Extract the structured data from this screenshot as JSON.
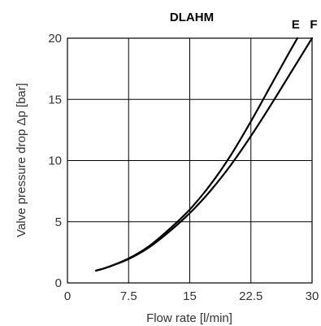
{
  "chart_data": {
    "type": "line",
    "title": "DLAHM",
    "xlabel": "Flow rate [l/min]",
    "ylabel": "Valve pressure drop Δp [bar]",
    "xlim": [
      0,
      30
    ],
    "ylim": [
      0,
      20
    ],
    "x_ticks": [
      "0",
      "7.5",
      "15",
      "22.5",
      "30"
    ],
    "y_ticks": [
      "0",
      "5",
      "10",
      "15",
      "20"
    ],
    "grid": true,
    "series": [
      {
        "name": "E",
        "x": [
          3.5,
          5,
          7.5,
          10,
          12.5,
          15,
          17.5,
          20,
          22.5,
          25,
          27,
          28.2
        ],
        "y": [
          1.0,
          1.3,
          2.0,
          3.0,
          4.4,
          6.0,
          8.0,
          10.4,
          13.2,
          16.2,
          18.6,
          20.0
        ]
      },
      {
        "name": "F",
        "x": [
          3.5,
          5,
          7.5,
          10,
          12.5,
          15,
          17.5,
          20,
          22.5,
          25,
          27.5,
          30
        ],
        "y": [
          1.0,
          1.3,
          1.95,
          2.9,
          4.2,
          5.7,
          7.5,
          9.6,
          12.0,
          14.6,
          17.3,
          20.0
        ]
      }
    ]
  }
}
